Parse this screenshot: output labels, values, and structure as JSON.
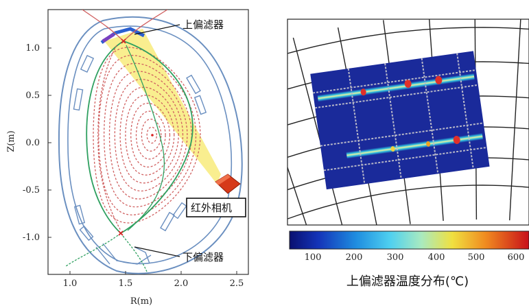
{
  "left_panel": {
    "y_axis_label": "Z(m)",
    "x_axis_label": "R(m)",
    "y_ticks": [
      "1.0",
      "0.5",
      "0.0",
      "-0.5",
      "-1.0"
    ],
    "x_ticks": [
      "1.0",
      "1.5",
      "2.0",
      "2.5"
    ],
    "upper_divertor_label": "上偏滤器",
    "lower_divertor_label": "下偏滤器",
    "camera_label": "红外相机"
  },
  "right_panel": {
    "colorbar_ticks": [
      "100",
      "200",
      "300",
      "400",
      "500",
      "600"
    ],
    "caption": "上偏滤器温度分布(℃)"
  },
  "colors": {
    "frame": "#333333",
    "wall": "#5a7fb0",
    "flux_surface": "#d06060",
    "separatrix": "#2fa060",
    "view_cone": "#f4e060",
    "camera": "#d63a1a",
    "heat_bg": "#1a2a9a",
    "hot": "#e0302a"
  }
}
